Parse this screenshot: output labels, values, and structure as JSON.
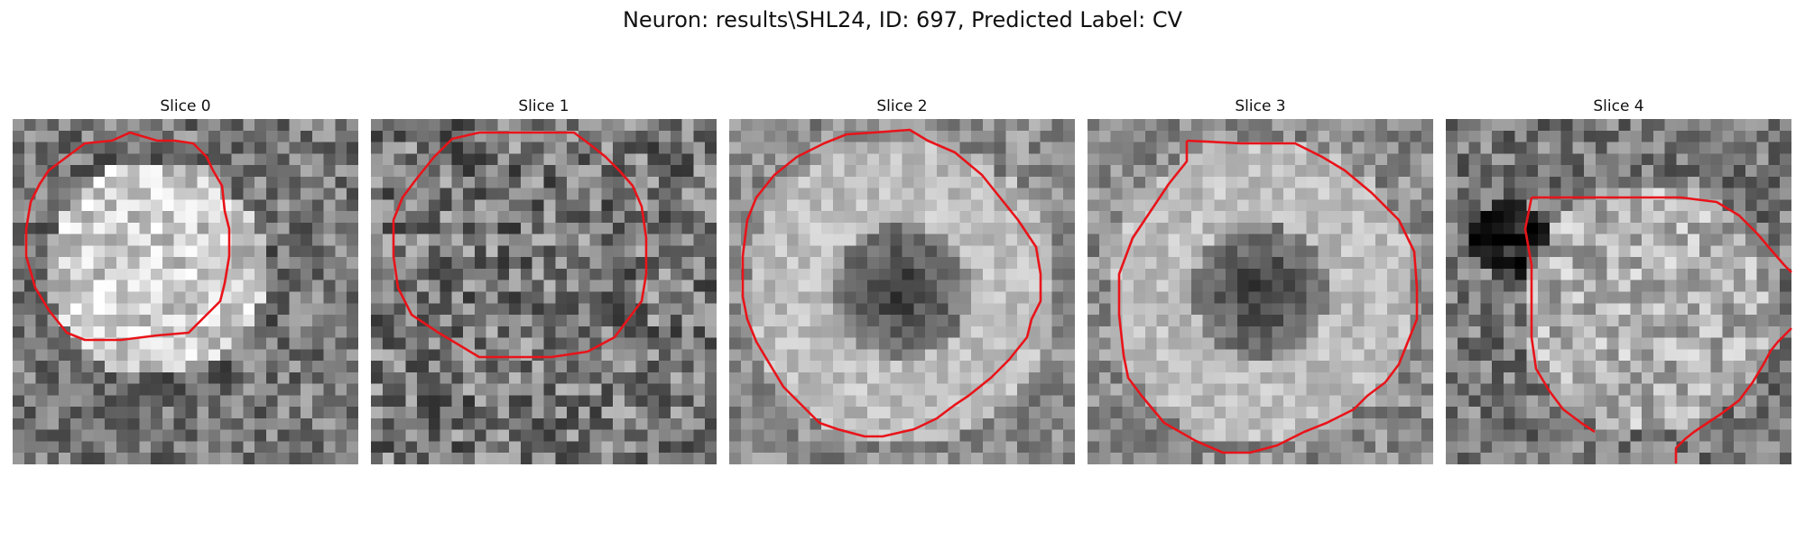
{
  "figure": {
    "title": "Neuron: results\\SHL24, ID: 697, Predicted Label: CV"
  },
  "colors": {
    "contour": "#e8141a",
    "background": "#ffffff"
  },
  "slices": [
    {
      "title": "Slice 0",
      "pattern": "bright-disk"
    },
    {
      "title": "Slice 1",
      "pattern": "noisy-disk"
    },
    {
      "title": "Slice 2",
      "pattern": "ring-dark-center"
    },
    {
      "title": "Slice 3",
      "pattern": "ring-dark-center"
    },
    {
      "title": "Slice 4",
      "pattern": "bright-blob-dark-topleft"
    }
  ]
}
